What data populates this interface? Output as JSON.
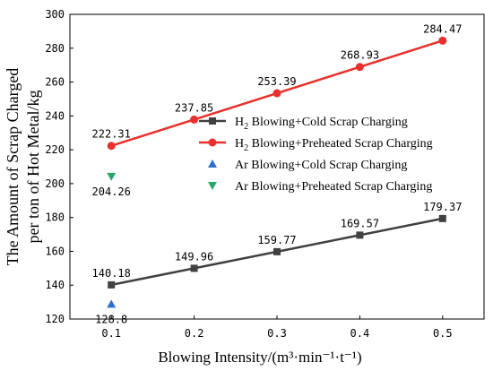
{
  "chart_data": {
    "type": "line",
    "xlabel": "Blowing Intensity/(m³·min⁻¹·t⁻¹)",
    "ylabel_lines": [
      "The Amount of Scrap Charged",
      "per ton of Hot Metal/kg"
    ],
    "x_ticks": [
      "0.1",
      "0.2",
      "0.3",
      "0.4",
      "0.5"
    ],
    "y_ticks": [
      "120",
      "140",
      "160",
      "180",
      "200",
      "220",
      "240",
      "260",
      "280",
      "300"
    ],
    "xlim": [
      0.05,
      0.55
    ],
    "ylim": [
      120,
      300
    ],
    "grid": false,
    "legend_position": "center-right",
    "series": [
      {
        "name": "H2 Blowing+Cold Scrap Charging",
        "legend_main": "H",
        "legend_sub": "2",
        "legend_rest": " Blowing+Cold Scrap Charging",
        "color": "#404040",
        "marker": "square",
        "x": [
          0.1,
          0.2,
          0.3,
          0.4,
          0.5
        ],
        "y": [
          140.18,
          149.96,
          159.77,
          169.57,
          179.37
        ],
        "labels": [
          "140.18",
          "149.96",
          "159.77",
          "169.57",
          "179.37"
        ]
      },
      {
        "name": "H2 Blowing+Preheated Scrap Charging",
        "legend_main": "H",
        "legend_sub": "2",
        "legend_rest": " Blowing+Preheated Scrap Charging",
        "color": "#e8302c",
        "marker": "circle",
        "x": [
          0.1,
          0.2,
          0.3,
          0.4,
          0.5
        ],
        "y": [
          222.31,
          237.85,
          253.39,
          268.93,
          284.47
        ],
        "labels": [
          "222.31",
          "237.85",
          "253.39",
          "268.93",
          "284.47"
        ]
      },
      {
        "name": "Ar Blowing+Cold Scrap Charging",
        "legend_main": "Ar Blowing+Cold Scrap Charging",
        "legend_sub": "",
        "legend_rest": "",
        "color": "#2e6fd0",
        "marker": "triangle-up",
        "x": [
          0.1
        ],
        "y": [
          128.8
        ],
        "labels": [
          "128.8"
        ]
      },
      {
        "name": "Ar Blowing+Preheated Scrap Charging",
        "legend_main": "Ar Blowing+Preheated Scrap Charging",
        "legend_sub": "",
        "legend_rest": "",
        "color": "#2aa66a",
        "marker": "triangle-down",
        "x": [
          0.1
        ],
        "y": [
          204.26
        ],
        "labels": [
          "204.26"
        ]
      }
    ]
  }
}
